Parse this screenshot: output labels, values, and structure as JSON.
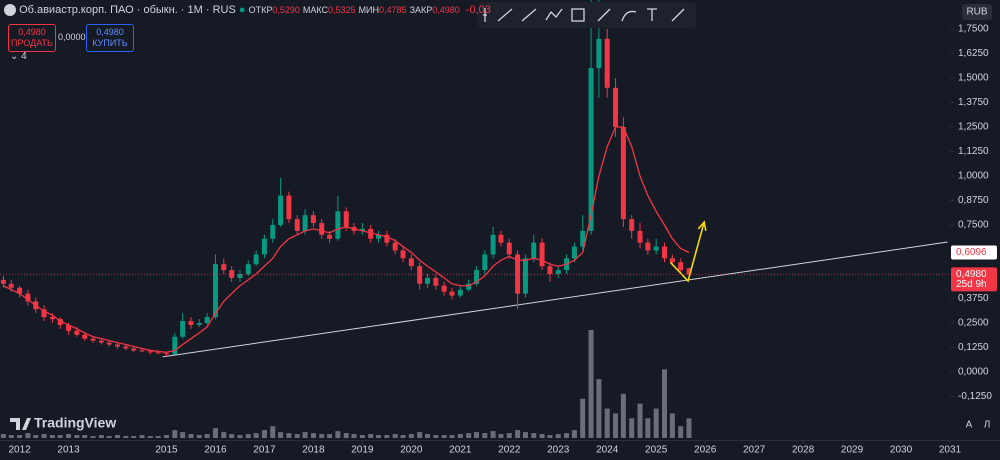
{
  "header": {
    "symbol": "Об.авиастр.корп. ПАО · обыкн. · 1M · RUS",
    "ohlc": [
      {
        "label": "ОТКР",
        "value": "0,5290"
      },
      {
        "label": "МАКС",
        "value": "0,5325"
      },
      {
        "label": "МИН",
        "value": "0,4785"
      },
      {
        "label": "ЗАКР",
        "value": "0,4980"
      }
    ],
    "change": "-0,03"
  },
  "trade": {
    "sell_price": "0,4980",
    "sell": "ПРОДАТЬ",
    "spread": "0,0000",
    "buy_price": "0,4980",
    "buy": "КУПИТЬ"
  },
  "indicators_count": "4",
  "currency": "RUB",
  "logo": "TradingView",
  "buttons": [
    "A",
    "Л"
  ],
  "chart_data": {
    "type": "candlestick",
    "up_color": "#089981",
    "down_color": "#f23645",
    "ma_color": "#f23645",
    "trend_color": "#d1d4dc",
    "arrow_color": "#f5d90a",
    "xlim": [
      2011.6,
      2031
    ],
    "xticks": [
      2012,
      2013,
      2015,
      2016,
      2017,
      2018,
      2019,
      2020,
      2021,
      2022,
      2023,
      2024,
      2025,
      2026,
      2027,
      2028,
      2029,
      2030,
      2031
    ],
    "ylim": [
      -0.347,
      1.898
    ],
    "yticks": [
      {
        "value": 1.75,
        "label": "1,7500"
      },
      {
        "value": 1.625,
        "label": "1,6250"
      },
      {
        "value": 1.5,
        "label": "1,5000"
      },
      {
        "value": 1.375,
        "label": "1,3750"
      },
      {
        "value": 1.25,
        "label": "1,2500"
      },
      {
        "value": 1.125,
        "label": "1,1250"
      },
      {
        "value": 1,
        "label": "1,0000"
      },
      {
        "value": 0.875,
        "label": "0,8750"
      },
      {
        "value": 0.75,
        "label": "0,7500"
      },
      {
        "value": 0.375,
        "label": "0,3750"
      },
      {
        "value": 0.25,
        "label": "0,2500"
      },
      {
        "value": 0.125,
        "label": "0,1250"
      },
      {
        "value": 0,
        "label": "0,0000"
      },
      {
        "value": -0.125,
        "label": "-0,1250"
      }
    ],
    "x": [
      2011.67,
      2011.83,
      2012,
      2012.17,
      2012.33,
      2012.5,
      2012.67,
      2012.83,
      2013,
      2013.17,
      2013.33,
      2013.5,
      2013.67,
      2013.83,
      2014,
      2014.17,
      2014.33,
      2014.5,
      2014.67,
      2014.83,
      2015,
      2015.17,
      2015.33,
      2015.5,
      2015.67,
      2015.83,
      2016,
      2016.17,
      2016.33,
      2016.5,
      2016.67,
      2016.83,
      2017,
      2017.17,
      2017.33,
      2017.5,
      2017.67,
      2017.83,
      2018,
      2018.17,
      2018.33,
      2018.5,
      2018.67,
      2018.83,
      2019,
      2019.17,
      2019.33,
      2019.5,
      2019.67,
      2019.83,
      2020,
      2020.17,
      2020.33,
      2020.5,
      2020.67,
      2020.83,
      2021,
      2021.17,
      2021.33,
      2021.5,
      2021.67,
      2021.83,
      2022,
      2022.17,
      2022.33,
      2022.5,
      2022.67,
      2022.83,
      2023,
      2023.17,
      2023.33,
      2023.5,
      2023.67,
      2023.83,
      2024,
      2024.17,
      2024.33,
      2024.5,
      2024.67,
      2024.83,
      2025,
      2025.17,
      2025.33,
      2025.5,
      2025.67
    ],
    "ohlc": [
      [
        0.47,
        0.49,
        0.43,
        0.45
      ],
      [
        0.45,
        0.47,
        0.41,
        0.43
      ],
      [
        0.43,
        0.44,
        0.38,
        0.4
      ],
      [
        0.4,
        0.42,
        0.34,
        0.36
      ],
      [
        0.36,
        0.38,
        0.3,
        0.32
      ],
      [
        0.32,
        0.34,
        0.26,
        0.28
      ],
      [
        0.28,
        0.3,
        0.25,
        0.27
      ],
      [
        0.27,
        0.28,
        0.22,
        0.24
      ],
      [
        0.24,
        0.25,
        0.19,
        0.21
      ],
      [
        0.21,
        0.23,
        0.18,
        0.19
      ],
      [
        0.19,
        0.2,
        0.16,
        0.17
      ],
      [
        0.17,
        0.18,
        0.15,
        0.16
      ],
      [
        0.16,
        0.17,
        0.14,
        0.15
      ],
      [
        0.15,
        0.16,
        0.13,
        0.14
      ],
      [
        0.14,
        0.15,
        0.12,
        0.13
      ],
      [
        0.13,
        0.14,
        0.11,
        0.12
      ],
      [
        0.12,
        0.13,
        0.1,
        0.11
      ],
      [
        0.11,
        0.12,
        0.1,
        0.105
      ],
      [
        0.105,
        0.11,
        0.09,
        0.1
      ],
      [
        0.1,
        0.11,
        0.09,
        0.095
      ],
      [
        0.095,
        0.1,
        0.08,
        0.09
      ],
      [
        0.09,
        0.2,
        0.09,
        0.18
      ],
      [
        0.18,
        0.3,
        0.17,
        0.26
      ],
      [
        0.26,
        0.28,
        0.22,
        0.24
      ],
      [
        0.24,
        0.27,
        0.23,
        0.25
      ],
      [
        0.25,
        0.3,
        0.24,
        0.28
      ],
      [
        0.28,
        0.6,
        0.27,
        0.55
      ],
      [
        0.55,
        0.58,
        0.5,
        0.52
      ],
      [
        0.52,
        0.54,
        0.46,
        0.48
      ],
      [
        0.48,
        0.52,
        0.46,
        0.5
      ],
      [
        0.5,
        0.57,
        0.49,
        0.55
      ],
      [
        0.55,
        0.62,
        0.54,
        0.6
      ],
      [
        0.6,
        0.7,
        0.58,
        0.68
      ],
      [
        0.68,
        0.78,
        0.66,
        0.75
      ],
      [
        0.75,
        0.99,
        0.74,
        0.9
      ],
      [
        0.9,
        0.92,
        0.76,
        0.78
      ],
      [
        0.78,
        0.8,
        0.7,
        0.72
      ],
      [
        0.72,
        0.83,
        0.7,
        0.8
      ],
      [
        0.8,
        0.82,
        0.74,
        0.76
      ],
      [
        0.76,
        0.78,
        0.68,
        0.7
      ],
      [
        0.7,
        0.72,
        0.66,
        0.68
      ],
      [
        0.68,
        0.9,
        0.67,
        0.82
      ],
      [
        0.82,
        0.84,
        0.72,
        0.74
      ],
      [
        0.74,
        0.76,
        0.7,
        0.72
      ],
      [
        0.72,
        0.76,
        0.7,
        0.73
      ],
      [
        0.73,
        0.75,
        0.66,
        0.68
      ],
      [
        0.68,
        0.72,
        0.66,
        0.7
      ],
      [
        0.7,
        0.72,
        0.64,
        0.66
      ],
      [
        0.66,
        0.68,
        0.6,
        0.62
      ],
      [
        0.62,
        0.64,
        0.56,
        0.58
      ],
      [
        0.58,
        0.6,
        0.52,
        0.54
      ],
      [
        0.54,
        0.56,
        0.42,
        0.45
      ],
      [
        0.45,
        0.5,
        0.43,
        0.48
      ],
      [
        0.48,
        0.5,
        0.42,
        0.44
      ],
      [
        0.44,
        0.46,
        0.39,
        0.41
      ],
      [
        0.41,
        0.43,
        0.37,
        0.39
      ],
      [
        0.39,
        0.44,
        0.38,
        0.42
      ],
      [
        0.42,
        0.47,
        0.41,
        0.45
      ],
      [
        0.45,
        0.54,
        0.44,
        0.52
      ],
      [
        0.52,
        0.62,
        0.5,
        0.6
      ],
      [
        0.6,
        0.74,
        0.58,
        0.7
      ],
      [
        0.7,
        0.72,
        0.64,
        0.66
      ],
      [
        0.66,
        0.68,
        0.58,
        0.6
      ],
      [
        0.6,
        0.62,
        0.32,
        0.4
      ],
      [
        0.4,
        0.6,
        0.38,
        0.58
      ],
      [
        0.58,
        0.7,
        0.56,
        0.66
      ],
      [
        0.66,
        0.68,
        0.52,
        0.54
      ],
      [
        0.54,
        0.56,
        0.46,
        0.5
      ],
      [
        0.5,
        0.54,
        0.48,
        0.52
      ],
      [
        0.52,
        0.6,
        0.5,
        0.58
      ],
      [
        0.58,
        0.66,
        0.56,
        0.64
      ],
      [
        0.64,
        0.8,
        0.62,
        0.72
      ],
      [
        0.72,
        1.9,
        0.7,
        1.55
      ],
      [
        1.55,
        1.9,
        1.4,
        1.7
      ],
      [
        1.7,
        1.75,
        1.4,
        1.45
      ],
      [
        1.45,
        1.5,
        1.2,
        1.25
      ],
      [
        1.25,
        1.3,
        0.74,
        0.78
      ],
      [
        0.78,
        0.8,
        0.68,
        0.72
      ],
      [
        0.72,
        0.76,
        0.63,
        0.66
      ],
      [
        0.66,
        0.68,
        0.6,
        0.62
      ],
      [
        0.62,
        0.68,
        0.6,
        0.64
      ],
      [
        0.64,
        0.66,
        0.56,
        0.58
      ],
      [
        0.58,
        0.6,
        0.54,
        0.56
      ],
      [
        0.56,
        0.58,
        0.5,
        0.52
      ],
      [
        0.529,
        0.5325,
        0.4785,
        0.498
      ]
    ],
    "ma": [
      0.44,
      0.42,
      0.4,
      0.37,
      0.34,
      0.31,
      0.29,
      0.26,
      0.24,
      0.22,
      0.2,
      0.18,
      0.17,
      0.16,
      0.15,
      0.14,
      0.13,
      0.12,
      0.11,
      0.105,
      0.1,
      0.11,
      0.14,
      0.17,
      0.2,
      0.23,
      0.3,
      0.36,
      0.4,
      0.44,
      0.47,
      0.5,
      0.54,
      0.58,
      0.64,
      0.68,
      0.7,
      0.72,
      0.73,
      0.72,
      0.71,
      0.73,
      0.74,
      0.73,
      0.72,
      0.71,
      0.7,
      0.69,
      0.67,
      0.64,
      0.61,
      0.57,
      0.54,
      0.51,
      0.48,
      0.45,
      0.44,
      0.44,
      0.46,
      0.49,
      0.54,
      0.57,
      0.59,
      0.57,
      0.57,
      0.58,
      0.57,
      0.55,
      0.54,
      0.55,
      0.57,
      0.61,
      0.8,
      1,
      1.15,
      1.25,
      1.25,
      1.15,
      1,
      0.9,
      0.82,
      0.75,
      0.68,
      0.63,
      0.6096
    ],
    "volume": [
      4,
      3,
      3,
      5,
      3,
      4,
      3,
      3,
      4,
      3,
      3,
      2,
      3,
      2,
      3,
      2,
      2,
      3,
      2,
      2,
      3,
      8,
      6,
      4,
      3,
      4,
      10,
      6,
      4,
      3,
      4,
      5,
      8,
      12,
      6,
      5,
      4,
      6,
      5,
      4,
      4,
      7,
      5,
      4,
      3,
      4,
      3,
      3,
      4,
      3,
      4,
      6,
      4,
      3,
      3,
      3,
      4,
      5,
      6,
      5,
      7,
      4,
      5,
      8,
      6,
      5,
      4,
      3,
      4,
      5,
      8,
      40,
      110,
      60,
      30,
      25,
      45,
      20,
      35,
      20,
      30,
      70,
      25,
      12,
      20
    ],
    "vlim": [
      0,
      110
    ],
    "trendline": {
      "x": [
        2014.92,
        2030.95
      ],
      "y": [
        0.077,
        0.663
      ]
    },
    "arrow": {
      "x": [
        2025.29,
        2025.65,
        2025.98
      ],
      "y": [
        0.56,
        0.464,
        0.765
      ]
    },
    "price_labels": [
      {
        "value": 0.6096,
        "label": "0,6096"
      },
      {
        "value": 0.498,
        "label": "0,4980",
        "countdown": "25d 9h"
      }
    ]
  }
}
